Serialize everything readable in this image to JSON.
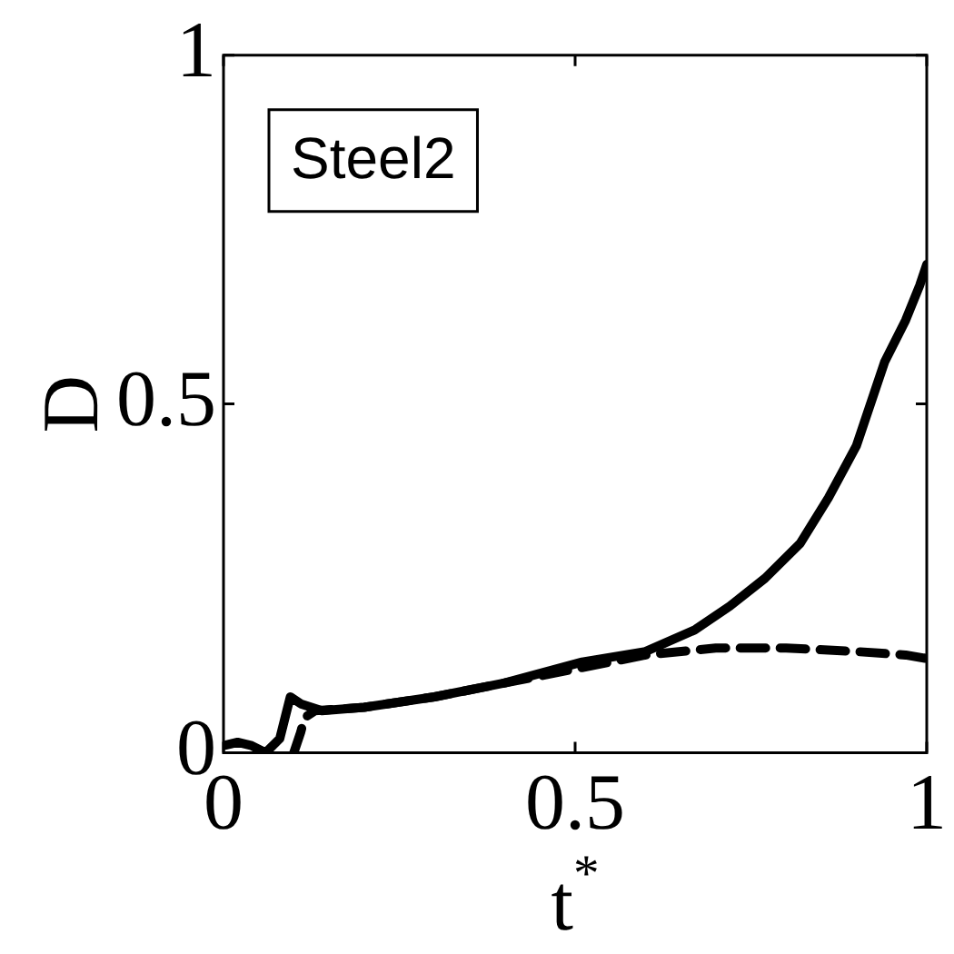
{
  "chart_data": {
    "type": "line",
    "xlabel": "t$^{*}$",
    "ylabel": "D",
    "annotations": [
      "Steel2"
    ],
    "xlim": [
      0,
      1
    ],
    "ylim": [
      0,
      1
    ],
    "xticks": [
      0,
      0.5,
      1
    ],
    "yticks": [
      0,
      0.5,
      1
    ],
    "grid": false,
    "legend": false,
    "marker": "none",
    "series": [
      {
        "color": "#000000",
        "line_style": "solid",
        "x": [
          0,
          0.02,
          0.04,
          0.06,
          0.08,
          0.09,
          0.095,
          0.11,
          0.14,
          0.2,
          0.3,
          0.4,
          0.51,
          0.6,
          0.67,
          0.72,
          0.77,
          0.82,
          0.86,
          0.9,
          0.94,
          0.97,
          0.99,
          1
        ],
        "values": [
          0.01,
          0.015,
          0.01,
          0.0,
          0.02,
          0.06,
          0.08,
          0.07,
          0.06,
          0.065,
          0.08,
          0.1,
          0.13,
          0.145,
          0.176,
          0.21,
          0.25,
          0.3,
          0.365,
          0.44,
          0.56,
          0.62,
          0.67,
          0.7
        ]
      },
      {
        "color": "#000000",
        "line_style": "dashed",
        "x": [
          0.1,
          0.11,
          0.115,
          0.13,
          0.2,
          0.3,
          0.4,
          0.5,
          0.6,
          0.7,
          0.8,
          0.9,
          0.97,
          1
        ],
        "values": [
          0,
          0.03,
          0.05,
          0.06,
          0.065,
          0.08,
          0.1,
          0.12,
          0.14,
          0.15,
          0.15,
          0.145,
          0.14,
          0.135
        ]
      }
    ]
  }
}
